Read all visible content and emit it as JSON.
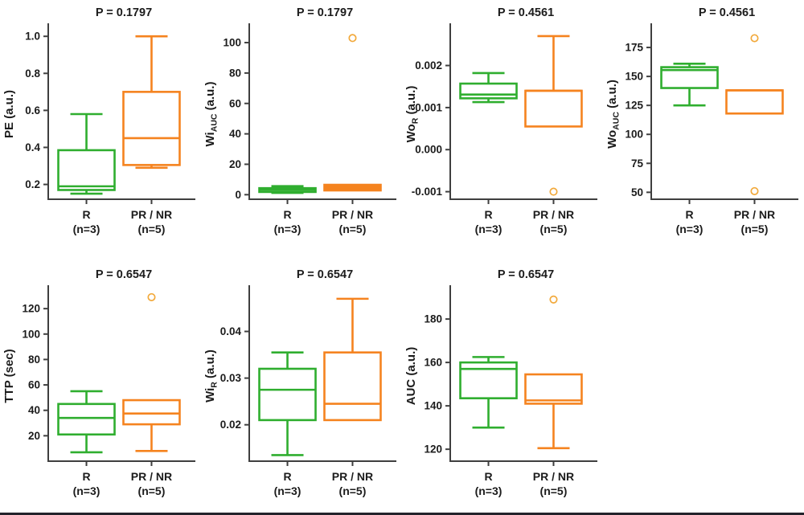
{
  "figure": {
    "description": "Seven box plots comparing responders R (n=3, green) vs PR / NR (n=5, orange)",
    "group_labels": [
      "R",
      "PR / NR"
    ],
    "group_sublabels": [
      "(n=3)",
      "(n=5)"
    ]
  },
  "colors": {
    "green": "#2fae2f",
    "orange": "#f5831f",
    "outlier": "#f2a93b",
    "axis": "#3f3f3f",
    "text": "#1c1c1c",
    "box_fill": "#ffffff",
    "bottom_border": "#23232b"
  },
  "chart_data": [
    {
      "type": "box",
      "title": "P = 0.1797",
      "ylabel": {
        "pre": "PE",
        "sub": "",
        "post": " (a.u.)"
      },
      "ylim": [
        0.12,
        1.04
      ],
      "yticks": [
        0.2,
        0.4,
        0.6,
        0.8,
        1.0
      ],
      "ytick_labels": [
        "0.2",
        "0.4",
        "0.6",
        "0.8",
        "1.0"
      ],
      "groups": [
        {
          "label": "R",
          "n": "(n=3)",
          "color": "green",
          "whisker_low": 0.15,
          "q1": 0.17,
          "median": 0.19,
          "q3": 0.385,
          "whisker_high": 0.58,
          "outliers": [],
          "solid": false
        },
        {
          "label": "PR / NR",
          "n": "(n=5)",
          "color": "orange",
          "whisker_low": 0.29,
          "q1": 0.305,
          "median": 0.45,
          "q3": 0.7,
          "whisker_high": 1.0,
          "outliers": [],
          "solid": false
        }
      ]
    },
    {
      "type": "box",
      "title": "P = 0.1797",
      "ylabel": {
        "pre": "Wi",
        "sub": "AUC",
        "post": " (a.u.)"
      },
      "ylim": [
        -3,
        109
      ],
      "yticks": [
        0,
        20,
        40,
        60,
        80,
        100
      ],
      "ytick_labels": [
        "0",
        "20",
        "40",
        "60",
        "80",
        "100"
      ],
      "groups": [
        {
          "label": "R",
          "n": "(n=3)",
          "color": "green",
          "whisker_low": 1.2,
          "q1": 1.8,
          "median": 3.2,
          "q3": 4.3,
          "whisker_high": 5.6,
          "outliers": [],
          "solid": false
        },
        {
          "label": "PR / NR",
          "n": "(n=5)",
          "color": "orange",
          "whisker_low": null,
          "q1": 2.8,
          "median": 4.6,
          "q3": 6.5,
          "whisker_high": null,
          "outliers": [
            103
          ],
          "solid": true
        }
      ]
    },
    {
      "type": "box",
      "title": "P = 0.4561",
      "ylabel": {
        "pre": "Wo",
        "sub": "R",
        "post": " (a.u.)"
      },
      "ylim": [
        -0.00118,
        0.00287
      ],
      "yticks": [
        -0.001,
        0.0,
        0.001,
        0.002
      ],
      "ytick_labels": [
        "-0.001",
        "0.000",
        "0.001",
        "0.002"
      ],
      "groups": [
        {
          "label": "R",
          "n": "(n=3)",
          "color": "green",
          "whisker_low": 0.00113,
          "q1": 0.00122,
          "median": 0.00131,
          "q3": 0.00157,
          "whisker_high": 0.00182,
          "outliers": [],
          "solid": false
        },
        {
          "label": "PR / NR",
          "n": "(n=5)",
          "color": "orange",
          "whisker_low": null,
          "q1": 0.00055,
          "median": 0.0014,
          "q3": 0.0014,
          "whisker_high": 0.0027,
          "outliers": [
            -0.001
          ],
          "solid": false
        }
      ]
    },
    {
      "type": "box",
      "title": "P = 0.4561",
      "ylabel": {
        "pre": "Wo",
        "sub": "AUC",
        "post": " (a.u.)"
      },
      "ylim": [
        44,
        191
      ],
      "yticks": [
        50,
        75,
        100,
        125,
        150,
        175
      ],
      "ytick_labels": [
        "50",
        "75",
        "100",
        "125",
        "150",
        "175"
      ],
      "groups": [
        {
          "label": "R",
          "n": "(n=3)",
          "color": "green",
          "whisker_low": 125,
          "q1": 140,
          "median": 155.5,
          "q3": 158,
          "whisker_high": 161,
          "outliers": [],
          "solid": false
        },
        {
          "label": "PR / NR",
          "n": "(n=5)",
          "color": "orange",
          "whisker_low": null,
          "q1": 118,
          "median": 138,
          "q3": 138,
          "whisker_high": null,
          "outliers": [
            183,
            51
          ],
          "solid": false
        }
      ]
    },
    {
      "type": "box",
      "title": "P = 0.6547",
      "ylabel": {
        "pre": "TTP",
        "sub": "",
        "post": " (sec)"
      },
      "ylim": [
        0,
        134
      ],
      "yticks": [
        20,
        40,
        60,
        80,
        100,
        120
      ],
      "ytick_labels": [
        "20",
        "40",
        "60",
        "80",
        "100",
        "120"
      ],
      "groups": [
        {
          "label": "R",
          "n": "(n=3)",
          "color": "green",
          "whisker_low": 7,
          "q1": 21,
          "median": 34,
          "q3": 45,
          "whisker_high": 55,
          "outliers": [],
          "solid": false
        },
        {
          "label": "PR / NR",
          "n": "(n=5)",
          "color": "orange",
          "whisker_low": 8,
          "q1": 29,
          "median": 37.5,
          "q3": 48,
          "whisker_high": null,
          "outliers": [
            129
          ],
          "solid": false
        }
      ]
    },
    {
      "type": "box",
      "title": "P = 0.6547",
      "ylabel": {
        "pre": "Wi",
        "sub": "R",
        "post": " (a.u.)"
      },
      "ylim": [
        0.0122,
        0.0487
      ],
      "yticks": [
        0.02,
        0.03,
        0.04
      ],
      "ytick_labels": [
        "0.02",
        "0.03",
        "0.04"
      ],
      "groups": [
        {
          "label": "R",
          "n": "(n=3)",
          "color": "green",
          "whisker_low": 0.0135,
          "q1": 0.021,
          "median": 0.0275,
          "q3": 0.032,
          "whisker_high": 0.0355,
          "outliers": [],
          "solid": false
        },
        {
          "label": "PR / NR",
          "n": "(n=5)",
          "color": "orange",
          "whisker_low": null,
          "q1": 0.021,
          "median": 0.0245,
          "q3": 0.0355,
          "whisker_high": 0.047,
          "outliers": [],
          "solid": false
        }
      ]
    },
    {
      "type": "box",
      "title": "P = 0.6547",
      "ylabel": {
        "pre": "AUC",
        "sub": "",
        "post": " (a.u.)"
      },
      "ylim": [
        114.5,
        193
      ],
      "yticks": [
        120,
        140,
        160,
        180
      ],
      "ytick_labels": [
        "120",
        "140",
        "160",
        "180"
      ],
      "groups": [
        {
          "label": "R",
          "n": "(n=3)",
          "color": "green",
          "whisker_low": 130,
          "q1": 143.5,
          "median": 157,
          "q3": 160,
          "whisker_high": 162.5,
          "outliers": [],
          "solid": false
        },
        {
          "label": "PR / NR",
          "n": "(n=5)",
          "color": "orange",
          "whisker_low": 120.5,
          "q1": 141,
          "median": 142.5,
          "q3": 154.5,
          "whisker_high": null,
          "outliers": [
            189
          ],
          "solid": false
        }
      ]
    }
  ]
}
